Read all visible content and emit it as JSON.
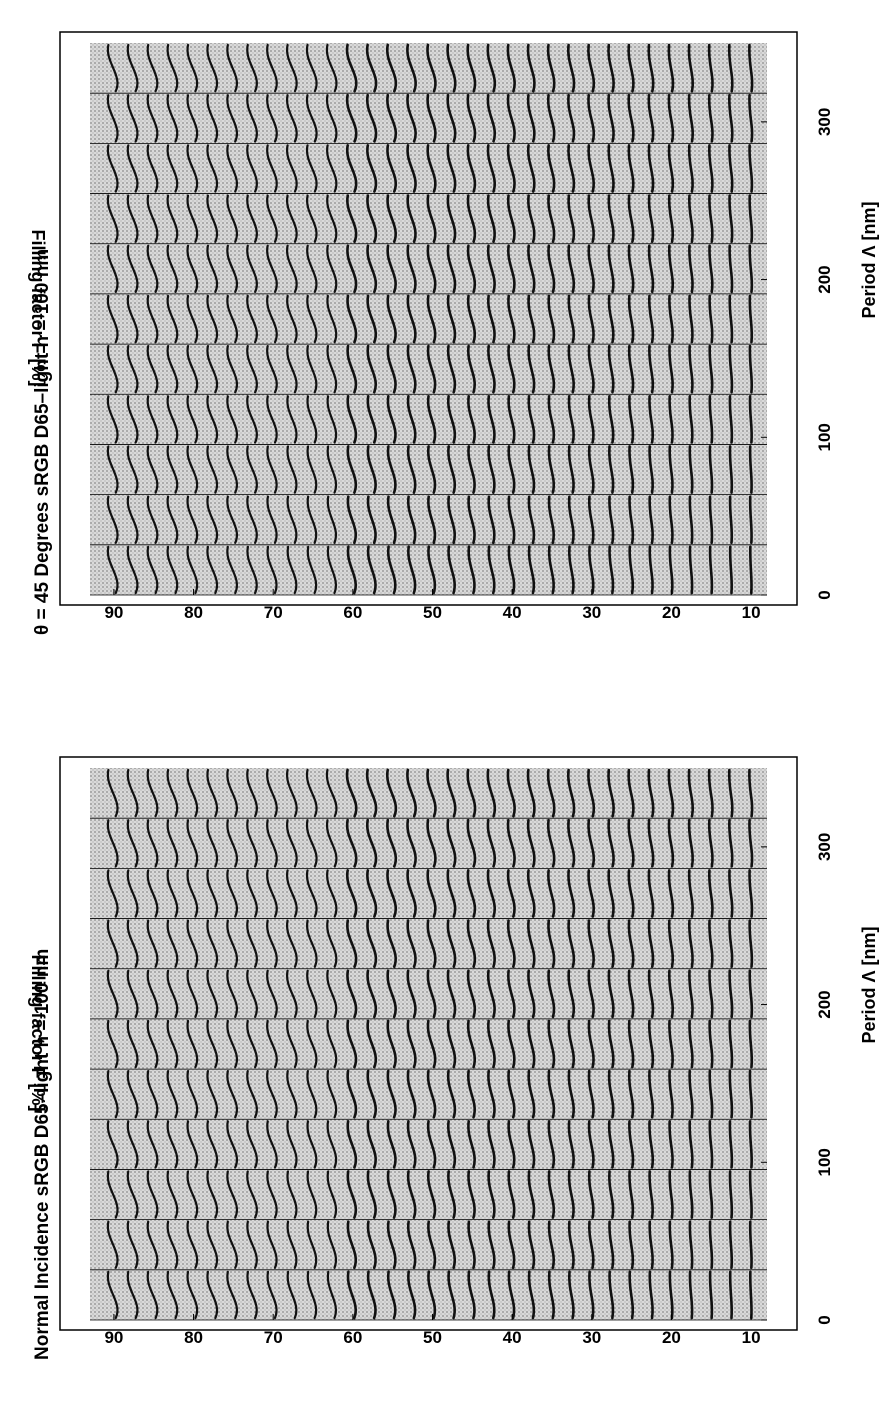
{
  "figure": {
    "background": "#ffffff",
    "plot_fill": "#d6d6d6",
    "curve_color": "#111111"
  },
  "chart_data": [
    {
      "type": "heatmap",
      "title": "Normal Incidence sRGB D65–light h = 100 nm",
      "xlabel": "Period Λ [nm]",
      "ylabel": "Filling factor F [%]",
      "xlim": [
        0,
        350
      ],
      "ylim": [
        8,
        93
      ],
      "xticks": [
        0,
        100,
        200,
        300
      ],
      "yticks": [
        10,
        20,
        30,
        40,
        50,
        60,
        70,
        80,
        90
      ],
      "grid": true,
      "period_columns": [
        10,
        50,
        80,
        110,
        140,
        170,
        200,
        230,
        260,
        290,
        320
      ],
      "filling_factor_rows": [
        10,
        12.5,
        15,
        17.5,
        20,
        22.5,
        25,
        27.5,
        30,
        32.5,
        35,
        37.5,
        40,
        42.5,
        45,
        47.5,
        50,
        52.5,
        55,
        57.5,
        60,
        62.5,
        65,
        67.5,
        70,
        72.5,
        75,
        77.5,
        80,
        82.5,
        85,
        87.5,
        90
      ]
    },
    {
      "type": "heatmap",
      "title": "θ = 45 Degrees sRGB D65–light h = 100 nm",
      "xlabel": "Period Λ [nm]",
      "ylabel": "Filling factor F [%]",
      "xlim": [
        0,
        350
      ],
      "ylim": [
        8,
        93
      ],
      "xticks": [
        0,
        100,
        200,
        300
      ],
      "yticks": [
        10,
        20,
        30,
        40,
        50,
        60,
        70,
        80,
        90
      ],
      "grid": true,
      "period_columns": [
        10,
        50,
        80,
        110,
        140,
        170,
        200,
        230,
        260,
        290,
        320
      ],
      "filling_factor_rows": [
        10,
        12.5,
        15,
        17.5,
        20,
        22.5,
        25,
        27.5,
        30,
        32.5,
        35,
        37.5,
        40,
        42.5,
        45,
        47.5,
        50,
        52.5,
        55,
        57.5,
        60,
        62.5,
        65,
        67.5,
        70,
        72.5,
        75,
        77.5,
        80,
        82.5,
        85,
        87.5,
        90
      ]
    }
  ]
}
